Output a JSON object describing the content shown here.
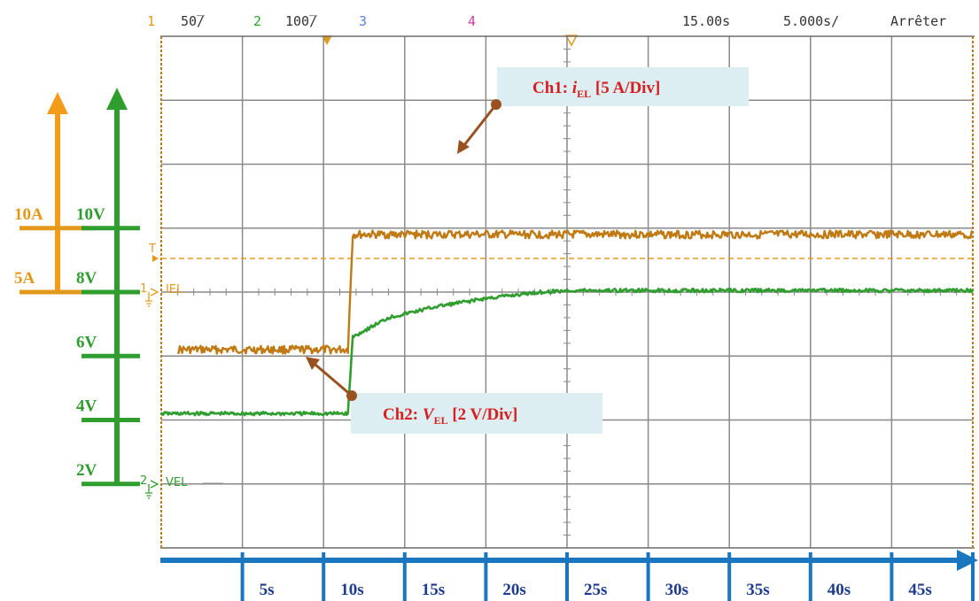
{
  "status_bar": {
    "ch1_num": "1",
    "ch1_scale": "50̅/",
    "ch2_num": "2",
    "ch2_scale": "100̅/",
    "ch3_num": "3",
    "ch4_num": "4",
    "time_pos": "15.00s",
    "time_div": "5.000s/",
    "run_state": "Arrêter"
  },
  "markers": {
    "ch1": "IEL",
    "ch2": "VEL",
    "ch1_num": "1",
    "ch2_num": "2",
    "trigger": "T"
  },
  "annotations": {
    "ch1": {
      "prefix": "Ch1: ",
      "sym": "i",
      "sub": "EL",
      "suffix": " [5 A/Div]"
    },
    "ch2": {
      "prefix": "Ch2: ",
      "sym": "V",
      "sub": "EL",
      "suffix": " [2 V/Div]"
    }
  },
  "colors": {
    "ch1": "#e39a1c",
    "ch2": "#2f9e2f",
    "ch1_trace": "#c07a14",
    "time_axis": "#1b76c0",
    "grid": "#888888",
    "ch3": "#5a7fd6",
    "ch4": "#d43aa8",
    "annotation_text": "#d81e1e",
    "annotation_bg": "#dceef2",
    "arrow": "#9a5120"
  },
  "chart_data": {
    "type": "line",
    "series": [
      {
        "name": "Ch1: iEL",
        "unit": "A",
        "x": [
          0,
          1,
          11.5,
          11.8,
          50
        ],
        "y": [
          null,
          6.2,
          6.2,
          9.8,
          9.8
        ]
      },
      {
        "name": "Ch2: VEL",
        "unit": "V",
        "x": [
          0,
          11.5,
          11.8,
          14,
          17,
          20,
          23,
          25,
          30,
          50
        ],
        "y": [
          4.2,
          4.2,
          6.6,
          7.2,
          7.55,
          7.8,
          7.98,
          8.05,
          8.05,
          8.05
        ]
      }
    ],
    "current_axis": {
      "ticks": [
        "10A",
        "5A"
      ],
      "values": [
        10,
        8
      ]
    },
    "voltage_axis": {
      "ticks": [
        "10V",
        "8V",
        "6V",
        "4V",
        "2V"
      ],
      "values": [
        10,
        8,
        6,
        4,
        2
      ]
    },
    "time_axis": {
      "ticks": [
        "5s",
        "10s",
        "15s",
        "20s",
        "25s",
        "30s",
        "35s",
        "40s",
        "45s"
      ],
      "values": [
        5,
        10,
        15,
        20,
        25,
        30,
        35,
        40,
        45
      ]
    },
    "xlim": [
      0,
      50
    ],
    "ylim": [
      0,
      16
    ]
  }
}
